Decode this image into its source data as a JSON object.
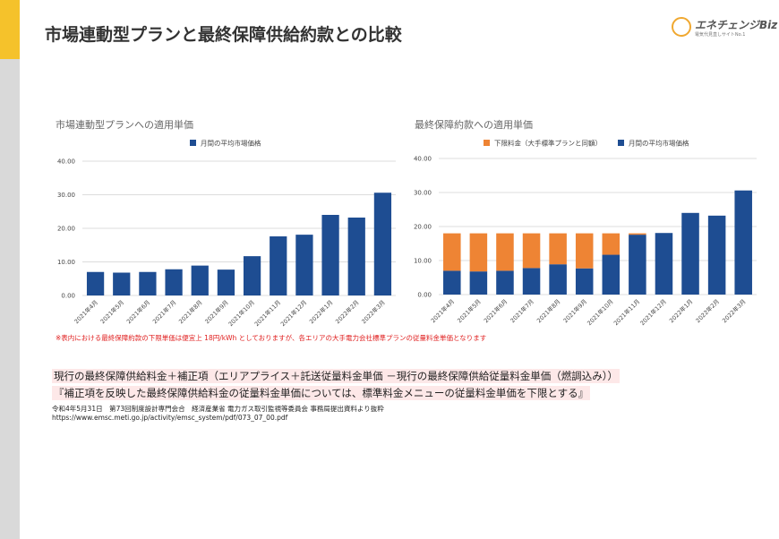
{
  "title": "市場連動型プランと最終保障供給約款との比較",
  "logo": {
    "name": "エネチェンジBiz",
    "tagline": "電気代見直しサイトNo.1"
  },
  "note": "※表内における最終保障約款の下限単価は便宜上 18円/kWh としておりますが、各エリアの大手電力会社標準プランの従量料金単価となります",
  "formula": [
    "現行の最終保障供給料金＋補正項（エリアプライス＋託送従量料金単価 －現行の最終保障供給従量料金単価（燃調込み））",
    "『補正項を反映した最終保障供給料金の従量料金単価については、標準料金メニューの従量料金単価を下限とする』"
  ],
  "source": [
    "令和4年5月31日　第73回制度設計専門会合　経済産業省 電力ガス取引監視等委員会 事務局提出資料より抜粋",
    "https://www.emsc.meti.go.jp/activity/emsc_system/pdf/073_07_00.pdf"
  ],
  "chart_data": [
    {
      "type": "bar",
      "title": "市場連動型プランへの適用単価",
      "categories": [
        "2021年4月",
        "2021年5月",
        "2021年6月",
        "2021年7月",
        "2021年8月",
        "2021年9月",
        "2021年10月",
        "2021年11月",
        "2021年12月",
        "2022年1月",
        "2022年2月",
        "2022年3月"
      ],
      "series": [
        {
          "name": "月間の平均市場価格",
          "color": "#1e4d92",
          "values": [
            7.0,
            6.8,
            7.0,
            7.8,
            8.9,
            7.7,
            11.7,
            17.6,
            18.1,
            24.0,
            23.2,
            30.6
          ]
        }
      ],
      "ylim": [
        0,
        40
      ],
      "yticks": [
        {
          "value": 0,
          "label": "0.00"
        },
        {
          "value": 10,
          "label": "10.00"
        },
        {
          "value": 20,
          "label": "20.00"
        },
        {
          "value": 30,
          "label": "30.00"
        },
        {
          "value": 40,
          "label": "40.00"
        }
      ],
      "grid": true
    },
    {
      "type": "bar",
      "title": "最終保障約款への適用単価",
      "stacked": true,
      "categories": [
        "2021年4月",
        "2021年5月",
        "2021年6月",
        "2021年7月",
        "2021年8月",
        "2021年9月",
        "2021年10月",
        "2021年11月",
        "2021年12月",
        "2022年1月",
        "2022年2月",
        "2022年3月"
      ],
      "series": [
        {
          "name": "下限料金（大手標準プランと同額）",
          "color": "#ee8434",
          "values": [
            11.0,
            11.2,
            11.0,
            10.2,
            9.1,
            10.3,
            6.3,
            0.4,
            0,
            0,
            0,
            0
          ]
        },
        {
          "name": "月間の平均市場価格",
          "color": "#1e4d92",
          "values": [
            7.0,
            6.8,
            7.0,
            7.8,
            8.9,
            7.7,
            11.7,
            17.6,
            18.1,
            24.0,
            23.2,
            30.6
          ]
        }
      ],
      "ylim": [
        0,
        40
      ],
      "yticks": [
        {
          "value": 0,
          "label": "0.00"
        },
        {
          "value": 10,
          "label": "10.00"
        },
        {
          "value": 20,
          "label": "20.00"
        },
        {
          "value": 30,
          "label": "30.00"
        },
        {
          "value": 40,
          "label": "40.00"
        }
      ],
      "grid": true
    }
  ]
}
